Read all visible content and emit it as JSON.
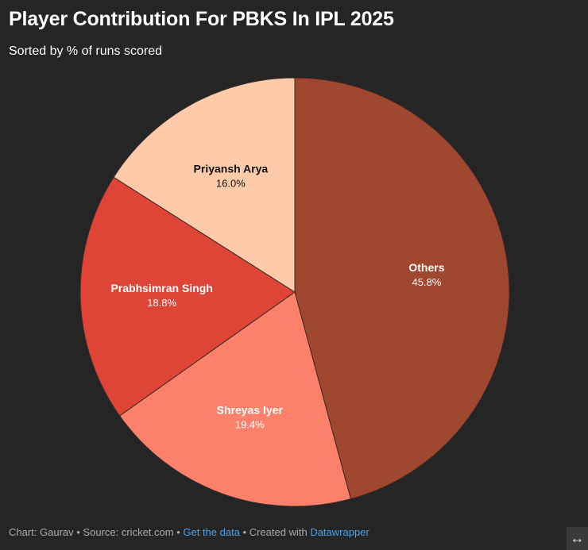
{
  "header": {
    "title": "Player Contribution For PBKS In IPL 2025",
    "subtitle": "Sorted by % of runs scored"
  },
  "chart_data": {
    "type": "pie",
    "title": "Player Contribution For PBKS In IPL 2025",
    "subtitle": "Sorted by % of runs scored",
    "categories": [
      "Others",
      "Shreyas Iyer",
      "Prabhsimran Singh",
      "Priyansh Arya"
    ],
    "values": [
      45.8,
      19.4,
      18.8,
      16.0
    ],
    "value_labels": [
      "45.8%",
      "19.4%",
      "18.8%",
      "16.0%"
    ],
    "colors": [
      "#a0472f",
      "#fd816a",
      "#de4536",
      "#fecbaa"
    ],
    "label_colors": [
      "#ffffff",
      "#ffffff",
      "#ffffff",
      "#111111"
    ],
    "start": "12 o'clock",
    "direction": "clockwise"
  },
  "footer": {
    "chart_by": "Chart: Gaurav",
    "separator": " • ",
    "source": "Source: cricket.com",
    "get_data": "Get the data",
    "created_with": "Created with ",
    "tool": "Datawrapper"
  },
  "expand_icon": "↔"
}
